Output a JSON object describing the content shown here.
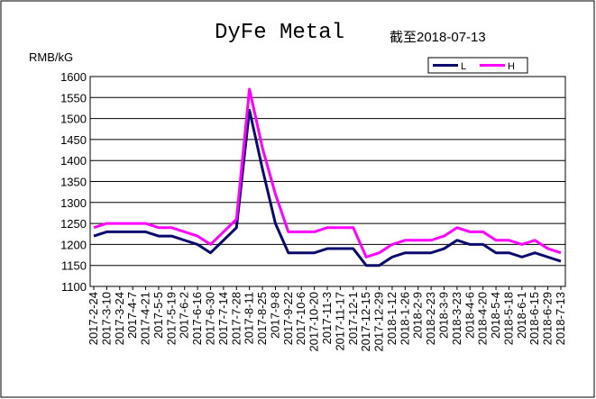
{
  "chart_data": {
    "type": "line",
    "title": "DyFe Metal",
    "subtitle": "截至2018-07-13",
    "y_label": "RMB/kG",
    "categories": [
      "2017-2-24",
      "2017-3-10",
      "2017-3-24",
      "2017-4-7",
      "2017-4-21",
      "2017-5-5",
      "2017-5-19",
      "2017-6-2",
      "2017-6-16",
      "2017-6-30",
      "2017-7-14",
      "2017-7-28",
      "2017-8-11",
      "2017-8-25",
      "2017-9-8",
      "2017-9-22",
      "2017-10-6",
      "2017-10-20",
      "2017-11-3",
      "2017-11-17",
      "2017-12-1",
      "2017-12-15",
      "2017-12-29",
      "2018-1-12",
      "2018-1-26",
      "2018-2-9",
      "2018-2-23",
      "2018-3-9",
      "2018-3-23",
      "2018-4-6",
      "2018-4-20",
      "2018-5-4",
      "2018-5-18",
      "2018-6-1",
      "2018-6-15",
      "2018-6-29",
      "2018-7-13"
    ],
    "series": [
      {
        "name": "L",
        "color": "#0a0a6e",
        "values": [
          1220,
          1230,
          1230,
          1230,
          1230,
          1220,
          1220,
          1210,
          1200,
          1180,
          1210,
          1240,
          1520,
          1380,
          1250,
          1180,
          1180,
          1180,
          1190,
          1190,
          1190,
          1150,
          1150,
          1170,
          1180,
          1180,
          1180,
          1190,
          1210,
          1200,
          1200,
          1180,
          1180,
          1170,
          1180,
          1170,
          1160
        ]
      },
      {
        "name": "H",
        "color": "#ff00ff",
        "values": [
          1240,
          1250,
          1250,
          1250,
          1250,
          1240,
          1240,
          1230,
          1220,
          1200,
          1230,
          1260,
          1570,
          1430,
          1320,
          1230,
          1230,
          1230,
          1240,
          1240,
          1240,
          1170,
          1180,
          1200,
          1210,
          1210,
          1210,
          1220,
          1240,
          1230,
          1230,
          1210,
          1210,
          1200,
          1210,
          1190,
          1180
        ]
      }
    ],
    "ylim": [
      1100,
      1600
    ],
    "yticks": [
      1100,
      1150,
      1200,
      1250,
      1300,
      1350,
      1400,
      1450,
      1500,
      1550,
      1600
    ],
    "grid": true,
    "legend": "top-right"
  }
}
